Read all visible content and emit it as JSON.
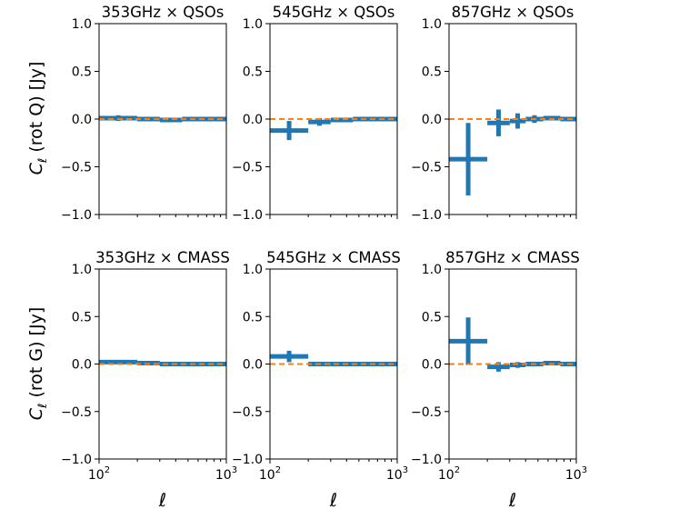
{
  "figure": {
    "row_ylabels": [
      {
        "main": "C",
        "sub": "ℓ",
        "rest": " (rot Q) [Jy]"
      },
      {
        "main": "C",
        "sub": "ℓ",
        "rest": " (rot G) [Jy]"
      }
    ],
    "xlabel": "ℓ",
    "xtick_labels": [
      {
        "base": "10",
        "exp": "2"
      },
      {
        "base": "10",
        "exp": "3"
      }
    ],
    "ytick_labels": [
      "1.0",
      "0.5",
      "0.0",
      "−0.5",
      "−1.0"
    ],
    "colors": {
      "data": "#1f77b4",
      "zero_line": "#ff7f0e",
      "axes": "#000000"
    }
  },
  "chart_data": [
    {
      "type": "errorbar",
      "title": "353GHz × QSOs",
      "x_scale": "log",
      "xlim": [
        100,
        1000
      ],
      "ylim": [
        -1.0,
        1.0
      ],
      "yticks": [
        1.0,
        0.5,
        0.0,
        -0.5,
        -1.0
      ],
      "reference_line": 0,
      "points": [
        {
          "x_lo": 100,
          "x_hi": 200,
          "y": 0.01,
          "yerr": 0.03
        },
        {
          "x_lo": 200,
          "x_hi": 300,
          "y": 0.0,
          "yerr": 0.02
        },
        {
          "x_lo": 300,
          "x_hi": 450,
          "y": -0.01,
          "yerr": 0.02
        },
        {
          "x_lo": 450,
          "x_hi": 600,
          "y": 0.0,
          "yerr": 0.01
        },
        {
          "x_lo": 600,
          "x_hi": 800,
          "y": 0.0,
          "yerr": 0.01
        },
        {
          "x_lo": 800,
          "x_hi": 1000,
          "y": 0.0,
          "yerr": 0.01
        }
      ]
    },
    {
      "type": "errorbar",
      "title": "545GHz × QSOs",
      "x_scale": "log",
      "xlim": [
        100,
        1000
      ],
      "ylim": [
        -1.0,
        1.0
      ],
      "yticks": [
        1.0,
        0.5,
        0.0,
        -0.5,
        -1.0
      ],
      "reference_line": 0,
      "points": [
        {
          "x_lo": 100,
          "x_hi": 200,
          "y": -0.12,
          "yerr": 0.1
        },
        {
          "x_lo": 200,
          "x_hi": 300,
          "y": -0.03,
          "yerr": 0.04
        },
        {
          "x_lo": 300,
          "x_hi": 450,
          "y": -0.01,
          "yerr": 0.02
        },
        {
          "x_lo": 450,
          "x_hi": 600,
          "y": 0.0,
          "yerr": 0.02
        },
        {
          "x_lo": 600,
          "x_hi": 800,
          "y": 0.0,
          "yerr": 0.01
        },
        {
          "x_lo": 800,
          "x_hi": 1000,
          "y": 0.0,
          "yerr": 0.01
        }
      ]
    },
    {
      "type": "errorbar",
      "title": "857GHz × QSOs",
      "x_scale": "log",
      "xlim": [
        100,
        1000
      ],
      "ylim": [
        -1.0,
        1.0
      ],
      "yticks": [
        1.0,
        0.5,
        0.0,
        -0.5,
        -1.0
      ],
      "reference_line": 0,
      "points": [
        {
          "x_lo": 100,
          "x_hi": 200,
          "y": -0.42,
          "yerr": 0.38
        },
        {
          "x_lo": 200,
          "x_hi": 300,
          "y": -0.04,
          "yerr": 0.14
        },
        {
          "x_lo": 300,
          "x_hi": 400,
          "y": -0.02,
          "yerr": 0.08
        },
        {
          "x_lo": 400,
          "x_hi": 550,
          "y": 0.0,
          "yerr": 0.04
        },
        {
          "x_lo": 550,
          "x_hi": 750,
          "y": 0.01,
          "yerr": 0.02
        },
        {
          "x_lo": 750,
          "x_hi": 1000,
          "y": 0.0,
          "yerr": 0.02
        }
      ]
    },
    {
      "type": "errorbar",
      "title": "353GHz × CMASS",
      "x_scale": "log",
      "xlim": [
        100,
        1000
      ],
      "ylim": [
        -1.0,
        1.0
      ],
      "yticks": [
        1.0,
        0.5,
        0.0,
        -0.5,
        -1.0
      ],
      "reference_line": 0,
      "points": [
        {
          "x_lo": 100,
          "x_hi": 200,
          "y": 0.02,
          "yerr": 0.01
        },
        {
          "x_lo": 200,
          "x_hi": 300,
          "y": 0.01,
          "yerr": 0.01
        },
        {
          "x_lo": 300,
          "x_hi": 450,
          "y": 0.0,
          "yerr": 0.01
        },
        {
          "x_lo": 450,
          "x_hi": 600,
          "y": 0.0,
          "yerr": 0.01
        },
        {
          "x_lo": 600,
          "x_hi": 800,
          "y": 0.0,
          "yerr": 0.01
        },
        {
          "x_lo": 800,
          "x_hi": 1000,
          "y": 0.0,
          "yerr": 0.01
        }
      ]
    },
    {
      "type": "errorbar",
      "title": "545GHz × CMASS",
      "x_scale": "log",
      "xlim": [
        100,
        1000
      ],
      "ylim": [
        -1.0,
        1.0
      ],
      "yticks": [
        1.0,
        0.5,
        0.0,
        -0.5,
        -1.0
      ],
      "reference_line": 0,
      "points": [
        {
          "x_lo": 100,
          "x_hi": 200,
          "y": 0.08,
          "yerr": 0.06
        },
        {
          "x_lo": 200,
          "x_hi": 300,
          "y": 0.0,
          "yerr": 0.02
        },
        {
          "x_lo": 300,
          "x_hi": 450,
          "y": 0.0,
          "yerr": 0.01
        },
        {
          "x_lo": 450,
          "x_hi": 600,
          "y": 0.0,
          "yerr": 0.01
        },
        {
          "x_lo": 600,
          "x_hi": 800,
          "y": 0.0,
          "yerr": 0.01
        },
        {
          "x_lo": 800,
          "x_hi": 1000,
          "y": 0.0,
          "yerr": 0.01
        }
      ]
    },
    {
      "type": "errorbar",
      "title": "857GHz × CMASS",
      "x_scale": "log",
      "xlim": [
        100,
        1000
      ],
      "ylim": [
        -1.0,
        1.0
      ],
      "yticks": [
        1.0,
        0.5,
        0.0,
        -0.5,
        -1.0
      ],
      "reference_line": 0,
      "points": [
        {
          "x_lo": 100,
          "x_hi": 200,
          "y": 0.24,
          "yerr": 0.25
        },
        {
          "x_lo": 200,
          "x_hi": 300,
          "y": -0.03,
          "yerr": 0.05
        },
        {
          "x_lo": 300,
          "x_hi": 400,
          "y": -0.01,
          "yerr": 0.03
        },
        {
          "x_lo": 400,
          "x_hi": 550,
          "y": 0.0,
          "yerr": 0.02
        },
        {
          "x_lo": 550,
          "x_hi": 750,
          "y": 0.01,
          "yerr": 0.02
        },
        {
          "x_lo": 750,
          "x_hi": 1000,
          "y": 0.0,
          "yerr": 0.01
        }
      ]
    }
  ]
}
